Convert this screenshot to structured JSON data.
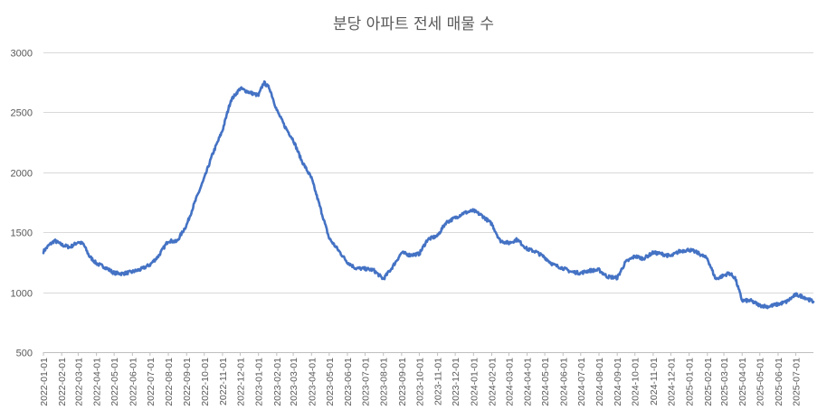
{
  "chart_data": {
    "type": "line",
    "title": "분당 아파트 전세 매물 수",
    "xlabel": "",
    "ylabel": "",
    "ylim": [
      500,
      3000
    ],
    "yticks": [
      500,
      1000,
      1500,
      2000,
      2500,
      3000
    ],
    "grid": true,
    "legend": "none",
    "line_color": "#4472c4",
    "x_range": [
      "2022-01-01",
      "2025-07-31"
    ],
    "xtick_labels": [
      "2022-01-01",
      "2022-02-01",
      "2022-03-01",
      "2022-04-01",
      "2022-05-01",
      "2022-06-01",
      "2022-07-01",
      "2022-08-01",
      "2022-09-01",
      "2022-10-01",
      "2022-11-01",
      "2022-12-01",
      "2023-01-01",
      "2023-02-01",
      "2023-03-01",
      "2023-04-01",
      "2023-05-01",
      "2023-06-01",
      "2023-07-01",
      "2023-08-01",
      "2023-09-01",
      "2023-10-01",
      "2023-11-01",
      "2023-12-01",
      "2024-01-01",
      "2024-02-01",
      "2024-03-01",
      "2024-04-01",
      "2024-05-01",
      "2024-06-01",
      "2024-07-01",
      "2024-08-01",
      "2024-09-01",
      "2024-10-01",
      "2024-11-01",
      "2024-12-01",
      "2025-01-01",
      "2025-02-01",
      "2025-03-01",
      "2025-04-01",
      "2025-05-01",
      "2025-06-01",
      "2025-07-01"
    ],
    "series": [
      {
        "x": [
          "2022-01-01",
          "2022-01-10",
          "2022-01-20",
          "2022-02-01",
          "2022-02-15",
          "2022-03-01",
          "2022-03-10",
          "2022-03-20",
          "2022-04-01",
          "2022-04-15",
          "2022-05-01",
          "2022-05-15",
          "2022-06-01",
          "2022-06-15",
          "2022-07-01",
          "2022-07-15",
          "2022-08-01",
          "2022-08-15",
          "2022-09-01",
          "2022-09-15",
          "2022-10-01",
          "2022-10-15",
          "2022-11-01",
          "2022-11-15",
          "2022-12-01",
          "2022-12-15",
          "2023-01-01",
          "2023-01-10",
          "2023-01-20",
          "2023-02-01",
          "2023-02-15",
          "2023-03-01",
          "2023-03-15",
          "2023-04-01",
          "2023-04-15",
          "2023-05-01",
          "2023-05-15",
          "2023-06-01",
          "2023-06-15",
          "2023-07-01",
          "2023-07-15",
          "2023-08-01",
          "2023-08-15",
          "2023-09-01",
          "2023-09-15",
          "2023-10-01",
          "2023-10-15",
          "2023-11-01",
          "2023-11-15",
          "2023-12-01",
          "2023-12-15",
          "2024-01-01",
          "2024-01-15",
          "2024-02-01",
          "2024-02-15",
          "2024-03-01",
          "2024-03-15",
          "2024-04-01",
          "2024-04-15",
          "2024-05-01",
          "2024-05-15",
          "2024-06-01",
          "2024-06-15",
          "2024-07-01",
          "2024-07-15",
          "2024-08-01",
          "2024-08-15",
          "2024-09-01",
          "2024-09-15",
          "2024-10-01",
          "2024-10-15",
          "2024-11-01",
          "2024-11-15",
          "2024-12-01",
          "2024-12-15",
          "2025-01-01",
          "2025-01-15",
          "2025-02-01",
          "2025-02-15",
          "2025-03-01",
          "2025-03-10",
          "2025-03-20",
          "2025-04-01",
          "2025-04-15",
          "2025-05-01",
          "2025-05-15",
          "2025-06-01",
          "2025-06-15",
          "2025-07-01",
          "2025-07-15",
          "2025-07-31"
        ],
        "values": [
          1340,
          1390,
          1430,
          1395,
          1375,
          1420,
          1400,
          1300,
          1240,
          1210,
          1160,
          1155,
          1170,
          1190,
          1230,
          1300,
          1430,
          1420,
          1560,
          1750,
          1950,
          2150,
          2350,
          2600,
          2700,
          2670,
          2640,
          2750,
          2700,
          2520,
          2380,
          2270,
          2100,
          1950,
          1720,
          1450,
          1360,
          1250,
          1200,
          1195,
          1185,
          1110,
          1200,
          1330,
          1310,
          1320,
          1440,
          1470,
          1580,
          1620,
          1660,
          1680,
          1640,
          1570,
          1430,
          1410,
          1440,
          1360,
          1340,
          1290,
          1230,
          1200,
          1170,
          1160,
          1180,
          1185,
          1130,
          1120,
          1250,
          1300,
          1280,
          1330,
          1320,
          1300,
          1340,
          1355,
          1330,
          1280,
          1110,
          1140,
          1160,
          1120,
          930,
          930,
          890,
          880,
          900,
          920,
          980,
          960,
          920
        ]
      }
    ]
  }
}
